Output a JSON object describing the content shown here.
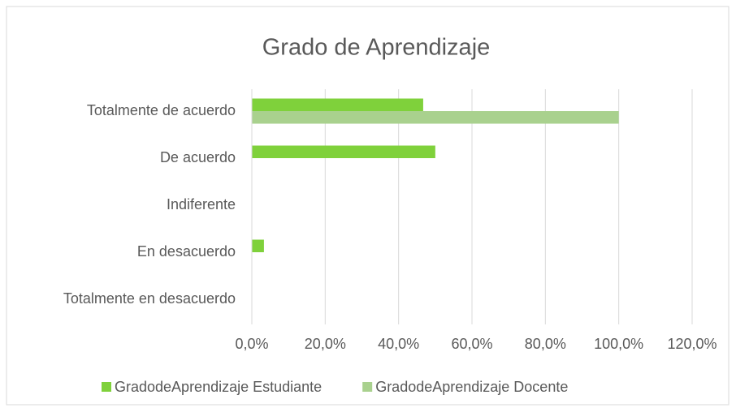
{
  "chart_data": {
    "type": "hbar",
    "title": "Grado de Aprendizaje",
    "categories": [
      "Totalmente de acuerdo",
      "De acuerdo",
      "Indiferente",
      "En desacuerdo",
      "Totalmente en desacuerdo"
    ],
    "series": [
      {
        "name": "GradodeAprendizaje Estudiante",
        "color": "#7fd13b",
        "values": [
          46.7,
          50,
          0,
          3.3,
          0
        ]
      },
      {
        "name": "GradodeAprendizaje Docente",
        "color": "#a9d18e",
        "values": [
          100,
          0,
          0,
          0,
          0
        ]
      }
    ],
    "xlim": [
      0,
      120
    ],
    "xticks": [
      {
        "value": 0,
        "label": "0,0%"
      },
      {
        "value": 20,
        "label": "20,0%"
      },
      {
        "value": 40,
        "label": "40,0%"
      },
      {
        "value": 60,
        "label": "60,0%"
      },
      {
        "value": 80,
        "label": "80,0%"
      },
      {
        "value": 100,
        "label": "100,0%"
      },
      {
        "value": 120,
        "label": "120,0%"
      }
    ],
    "grid": true,
    "legend": "bottom"
  }
}
